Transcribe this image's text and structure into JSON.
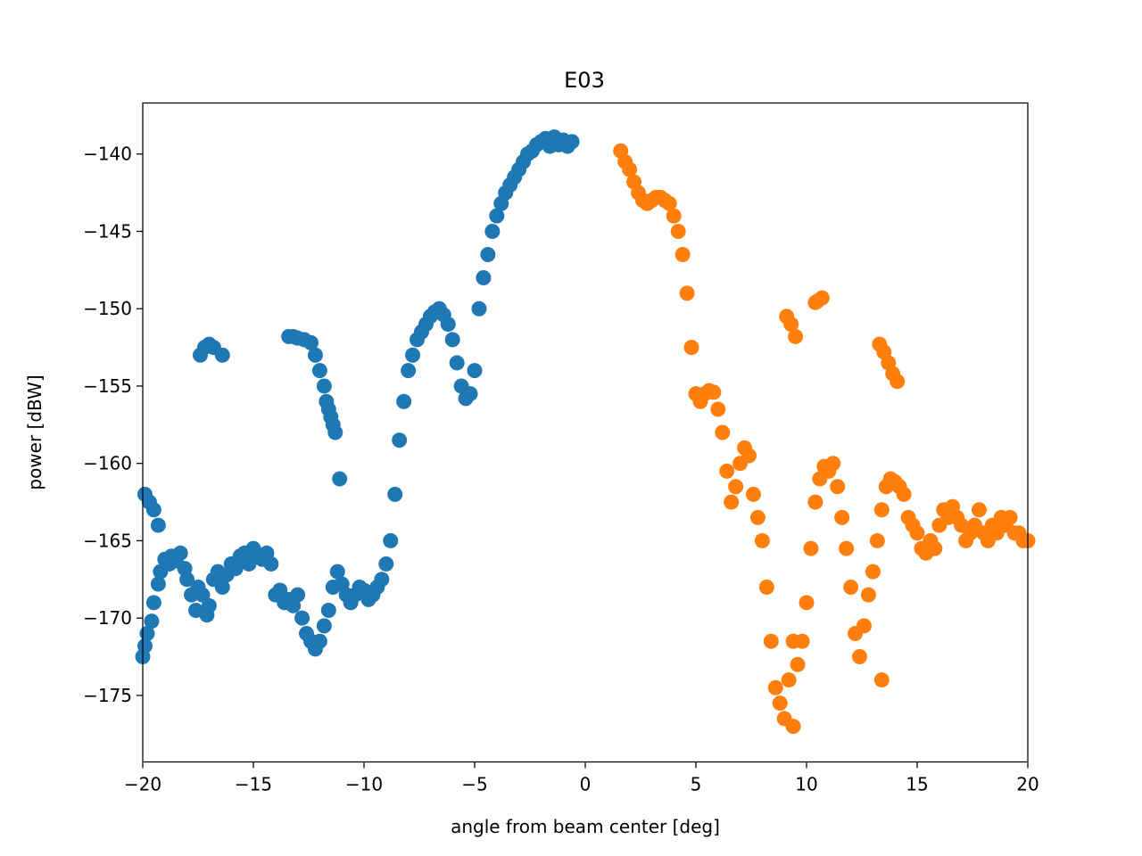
{
  "chart_data": {
    "type": "scatter",
    "title": "E03",
    "xlabel": "angle from beam center [deg]",
    "ylabel": "power [dBW]",
    "xlim": [
      -20,
      20
    ],
    "ylim": [
      -179.3,
      -136.7
    ],
    "xticks": [
      -20,
      -15,
      -10,
      -5,
      0,
      5,
      10,
      15,
      20
    ],
    "xtick_labels": [
      "−20",
      "−15",
      "−10",
      "−5",
      "0",
      "5",
      "10",
      "15",
      "20"
    ],
    "yticks": [
      -140,
      -145,
      -150,
      -155,
      -160,
      -165,
      -170,
      -175
    ],
    "ytick_labels": [
      "−140",
      "−145",
      "−150",
      "−155",
      "−160",
      "−165",
      "−170",
      "−175"
    ],
    "grid": false,
    "series": [
      {
        "color": "#1f77b4",
        "x": [
          -20.0,
          -19.9,
          -19.8,
          -19.6,
          -19.5,
          -19.3,
          -19.2,
          -19.0,
          -18.8,
          -18.7,
          -18.5,
          -18.3,
          -18.1,
          -18.0,
          -17.8,
          -17.6,
          -17.5,
          -17.3,
          -17.1,
          -17.0,
          -16.8,
          -16.6,
          -16.4,
          -16.2,
          -16.0,
          -15.8,
          -15.6,
          -15.4,
          -15.2,
          -15.0,
          -14.8,
          -14.6,
          -14.4,
          -14.2,
          -14.0,
          -13.8,
          -13.6,
          -13.4,
          -13.2,
          -13.0,
          -12.8,
          -12.6,
          -12.4,
          -12.2,
          -12.0,
          -11.8,
          -11.6,
          -11.4,
          -11.2,
          -11.0,
          -10.8,
          -10.6,
          -10.4,
          -10.2,
          -10.0,
          -9.8,
          -9.6,
          -9.4,
          -9.2,
          -9.0,
          -8.8,
          -8.6,
          -8.4,
          -8.2,
          -8.0,
          -7.8,
          -7.6,
          -7.4,
          -7.2,
          -7.0,
          -6.8,
          -6.6,
          -6.4,
          -6.2,
          -6.0,
          -5.8,
          -5.6,
          -5.4,
          -5.2,
          -5.0,
          -4.8,
          -4.6,
          -4.4,
          -4.2,
          -4.0,
          -3.8,
          -3.6,
          -3.4,
          -3.2,
          -3.0,
          -2.8,
          -2.6,
          -2.4,
          -2.2,
          -2.0,
          -1.8,
          -1.6,
          -1.4,
          -1.2,
          -1.0,
          -0.8,
          -0.6,
          -19.9,
          -19.7,
          -19.5,
          -19.3,
          -17.4,
          -17.2,
          -17.0,
          -16.8,
          -16.4,
          -13.4,
          -13.2,
          -13.0,
          -12.7,
          -12.4,
          -12.2,
          -12.0,
          -11.8,
          -11.7,
          -11.6,
          -11.5,
          -11.4,
          -11.3,
          -11.1
        ],
        "y": [
          -172.5,
          -171.8,
          -171.0,
          -170.2,
          -169.0,
          -167.8,
          -167.0,
          -166.2,
          -166.5,
          -166.0,
          -166.3,
          -165.8,
          -166.8,
          -167.5,
          -168.5,
          -169.5,
          -168.0,
          -168.5,
          -169.8,
          -169.2,
          -167.5,
          -167.0,
          -168.0,
          -167.2,
          -166.5,
          -166.8,
          -166.0,
          -165.8,
          -166.5,
          -165.5,
          -166.0,
          -166.2,
          -165.8,
          -166.5,
          -168.5,
          -168.2,
          -169.0,
          -168.8,
          -169.2,
          -168.5,
          -170.0,
          -171.0,
          -171.5,
          -172.0,
          -171.5,
          -170.5,
          -169.5,
          -168.0,
          -167.0,
          -167.8,
          -168.5,
          -169.0,
          -168.5,
          -168.0,
          -168.2,
          -168.8,
          -168.5,
          -168.0,
          -167.5,
          -166.5,
          -165.0,
          -162.0,
          -158.5,
          -156.0,
          -154.0,
          -153.0,
          -152.0,
          -151.5,
          -151.0,
          -150.5,
          -150.2,
          -150.0,
          -150.4,
          -151.0,
          -152.0,
          -153.5,
          -155.0,
          -155.8,
          -155.5,
          -154.0,
          -150.0,
          -148.0,
          -146.5,
          -145.0,
          -144.0,
          -143.2,
          -142.5,
          -142.0,
          -141.5,
          -141.0,
          -140.5,
          -140.0,
          -139.8,
          -139.4,
          -139.2,
          -139.0,
          -139.5,
          -138.9,
          -139.4,
          -139.1,
          -139.5,
          -139.2,
          -162.0,
          -162.5,
          -163.0,
          -164.0,
          -153.0,
          -152.5,
          -152.3,
          -152.5,
          -153.0,
          -151.8,
          -151.8,
          -151.9,
          -152.0,
          -152.2,
          -153.0,
          -154.0,
          -155.0,
          -156.0,
          -156.5,
          -157.0,
          -157.5,
          -158.0,
          -161.0
        ]
      },
      {
        "color": "#ff7f0e",
        "x": [
          1.6,
          1.8,
          2.0,
          2.2,
          2.4,
          2.6,
          2.8,
          3.0,
          3.2,
          3.4,
          3.6,
          3.8,
          4.0,
          4.2,
          4.4,
          4.6,
          4.8,
          5.0,
          5.2,
          5.4,
          5.6,
          5.8,
          6.0,
          6.2,
          6.4,
          6.6,
          6.8,
          7.0,
          7.2,
          7.4,
          7.6,
          7.8,
          8.0,
          8.2,
          8.4,
          8.6,
          8.8,
          9.0,
          9.2,
          9.4,
          9.6,
          9.8,
          10.0,
          10.2,
          10.4,
          10.6,
          10.8,
          11.0,
          11.2,
          11.4,
          11.6,
          11.8,
          12.0,
          12.2,
          12.4,
          12.6,
          12.8,
          13.0,
          13.2,
          13.4,
          13.6,
          13.8,
          14.0,
          14.2,
          14.4,
          14.6,
          14.8,
          15.0,
          15.2,
          15.4,
          15.6,
          15.8,
          16.0,
          16.2,
          16.4,
          16.6,
          16.8,
          17.0,
          17.2,
          17.4,
          17.6,
          17.8,
          18.0,
          18.2,
          18.4,
          18.6,
          18.8,
          19.0,
          19.2,
          19.4,
          19.6,
          19.8,
          20.0,
          9.1,
          9.3,
          9.5,
          10.4,
          10.7,
          10.5,
          13.3,
          13.5,
          13.7,
          13.9,
          14.1,
          13.4,
          9.4
        ],
        "y": [
          -139.8,
          -140.5,
          -141.0,
          -141.8,
          -142.5,
          -143.0,
          -143.2,
          -143.0,
          -142.8,
          -142.8,
          -143.0,
          -143.2,
          -144.0,
          -145.0,
          -146.5,
          -149.0,
          -152.5,
          -155.5,
          -156.0,
          -155.5,
          -155.3,
          -155.4,
          -156.5,
          -158.0,
          -160.5,
          -162.5,
          -161.5,
          -160.0,
          -159.0,
          -159.5,
          -162.0,
          -163.5,
          -165.0,
          -168.0,
          -171.5,
          -174.5,
          -175.5,
          -176.5,
          -174.0,
          -171.5,
          -173.0,
          -171.5,
          -169.0,
          -165.5,
          -162.5,
          -161.0,
          -160.2,
          -160.5,
          -160.0,
          -161.5,
          -163.5,
          -165.5,
          -168.0,
          -171.0,
          -172.5,
          -170.5,
          -168.5,
          -167.0,
          -165.0,
          -163.0,
          -161.5,
          -161.0,
          -161.2,
          -161.5,
          -162.0,
          -163.5,
          -164.0,
          -164.5,
          -165.5,
          -165.8,
          -165.0,
          -165.5,
          -164.0,
          -163.0,
          -163.5,
          -162.8,
          -163.5,
          -164.0,
          -165.0,
          -164.5,
          -164.0,
          -163.0,
          -164.5,
          -165.0,
          -164.0,
          -164.5,
          -163.5,
          -164.0,
          -163.5,
          -164.5,
          -164.5,
          -165.0,
          -165.0,
          -150.5,
          -151.0,
          -151.8,
          -149.6,
          -149.3,
          -149.5,
          -152.3,
          -152.8,
          -153.5,
          -154.2,
          -154.7,
          -174.0,
          -177.0
        ]
      }
    ]
  }
}
